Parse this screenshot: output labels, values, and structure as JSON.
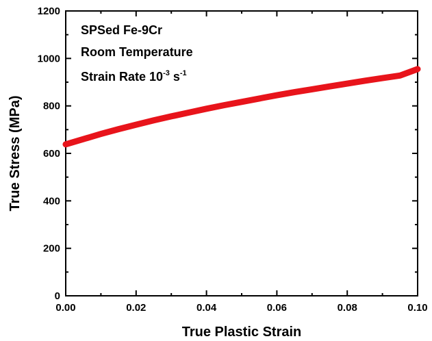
{
  "chart_data": {
    "type": "line",
    "xlabel": "True Plastic Strain",
    "ylabel": "True Stress (MPa)",
    "xlim": [
      0.0,
      0.1
    ],
    "ylim": [
      0,
      1200
    ],
    "x_ticks": [
      "0.00",
      "0.02",
      "0.04",
      "0.06",
      "0.08",
      "0.10"
    ],
    "y_ticks": [
      "0",
      "200",
      "400",
      "600",
      "800",
      "1000",
      "1200"
    ],
    "grid": false,
    "legend": "none",
    "annotations": {
      "line1": "SPSed Fe-9Cr",
      "line2": "Room Temperature",
      "line3_prefix": "Strain Rate 10",
      "line3_exp": "-3",
      "line3_unit": " s",
      "line3_unit_exp": "-1"
    },
    "series": [
      {
        "color": "#e8141b",
        "x": [
          0.0,
          0.005,
          0.01,
          0.015,
          0.02,
          0.025,
          0.03,
          0.035,
          0.04,
          0.045,
          0.05,
          0.055,
          0.06,
          0.065,
          0.07,
          0.075,
          0.08,
          0.085,
          0.09,
          0.095,
          0.1
        ],
        "y": [
          638,
          660,
          682,
          702,
          721,
          739,
          756,
          772,
          788,
          803,
          817,
          831,
          845,
          858,
          870,
          882,
          894,
          906,
          917,
          928,
          955
        ]
      }
    ]
  }
}
